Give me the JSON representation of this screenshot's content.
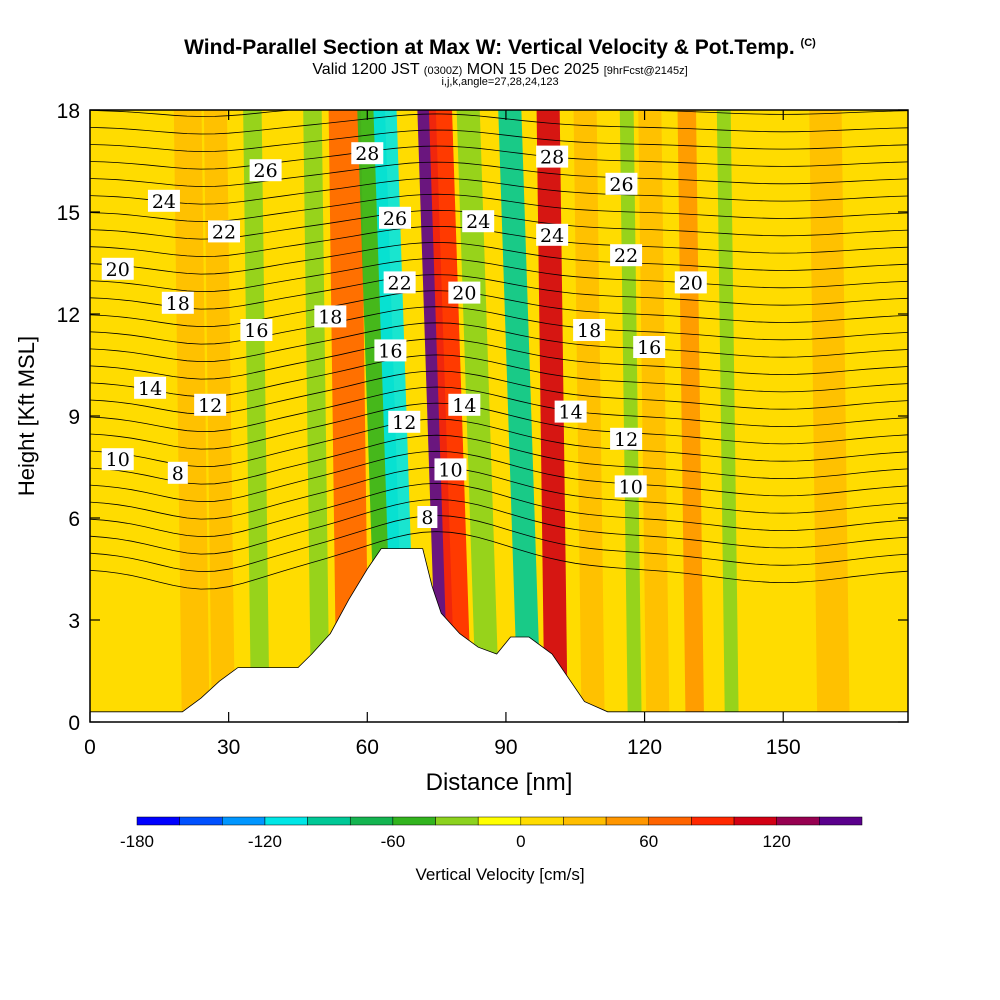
{
  "header": {
    "title": "Wind-Parallel Section at Max W: Vertical Velocity & Pot.Temp.",
    "title_mark": "(C)",
    "subtitle_pre": "Valid 1200 JST",
    "subtitle_small1": "(0300Z)",
    "subtitle_mid": "MON 15 Dec 2025",
    "subtitle_small2": "[9hrFcst@2145z]",
    "indices": "i,j,k,angle=27,28,24,123"
  },
  "chart_data": {
    "type": "heatmap",
    "xlabel": "Distance [nm]",
    "ylabel": "Height [Kft MSL]",
    "xlim": [
      0,
      177
    ],
    "ylim": [
      0,
      18
    ],
    "xticks": [
      0,
      30,
      60,
      90,
      120,
      150
    ],
    "yticks": [
      0,
      3,
      6,
      9,
      12,
      15,
      18
    ],
    "colorbar": {
      "label": "Vertical Velocity [cm/s]",
      "tick_values": [
        -180,
        -120,
        -60,
        0,
        60,
        120
      ],
      "levels": [
        -180,
        -160,
        -140,
        -120,
        -100,
        -80,
        -60,
        -40,
        -20,
        0,
        20,
        40,
        60,
        80,
        100,
        120,
        140,
        160
      ],
      "colors": [
        "#0000ff",
        "#0050ff",
        "#0096ff",
        "#00e6e6",
        "#00c896",
        "#14b450",
        "#32b41e",
        "#8cd21e",
        "#ffff00",
        "#ffdc00",
        "#ffbe00",
        "#ff9600",
        "#ff6400",
        "#ff2800",
        "#d20014",
        "#960050",
        "#5a008c"
      ]
    },
    "velocity_bands": [
      {
        "x_center": 22,
        "width": 6,
        "w": 20
      },
      {
        "x_center": 28,
        "width": 5,
        "w": 30
      },
      {
        "x_center": 36,
        "width": 4,
        "w": -40
      },
      {
        "x_center": 49,
        "width": 4,
        "w": -40
      },
      {
        "x_center": 56,
        "width": 7,
        "w": 60
      },
      {
        "x_center": 63,
        "width": 6,
        "w": -60
      },
      {
        "x_center": 66,
        "width": 5,
        "w": -120
      },
      {
        "x_center": 75,
        "width": 4,
        "w": 140
      },
      {
        "x_center": 78,
        "width": 5,
        "w": 80
      },
      {
        "x_center": 84,
        "width": 5,
        "w": -40
      },
      {
        "x_center": 93,
        "width": 5,
        "w": -100
      },
      {
        "x_center": 100,
        "width": 5,
        "w": 110
      },
      {
        "x_center": 108,
        "width": 5,
        "w": 30
      },
      {
        "x_center": 117,
        "width": 3,
        "w": -40
      },
      {
        "x_center": 122,
        "width": 5,
        "w": 20
      },
      {
        "x_center": 130,
        "width": 4,
        "w": 40
      },
      {
        "x_center": 138,
        "width": 3,
        "w": -40
      },
      {
        "x_center": 160,
        "width": 7,
        "w": 30
      }
    ],
    "terrain": [
      [
        0,
        0.3
      ],
      [
        20,
        0.3
      ],
      [
        24,
        0.7
      ],
      [
        28,
        1.2
      ],
      [
        32,
        1.6
      ],
      [
        45,
        1.6
      ],
      [
        48,
        2
      ],
      [
        52,
        2.6
      ],
      [
        56,
        3.6
      ],
      [
        60,
        4.5
      ],
      [
        63,
        5.1
      ],
      [
        72,
        5.1
      ],
      [
        74,
        4
      ],
      [
        76,
        3.2
      ],
      [
        80,
        2.6
      ],
      [
        84,
        2.2
      ],
      [
        88,
        2
      ],
      [
        91,
        2.5
      ],
      [
        95,
        2.5
      ],
      [
        100,
        2
      ],
      [
        104,
        1.2
      ],
      [
        107,
        0.6
      ],
      [
        112,
        0.3
      ],
      [
        177,
        0.3
      ]
    ],
    "pot_temp_contour_labels": [
      {
        "value": "24",
        "x": 16,
        "y": 15.3
      },
      {
        "value": "26",
        "x": 38,
        "y": 16.2
      },
      {
        "value": "28",
        "x": 60,
        "y": 16.7
      },
      {
        "value": "22",
        "x": 29,
        "y": 14.4
      },
      {
        "value": "26",
        "x": 66,
        "y": 14.8
      },
      {
        "value": "24",
        "x": 84,
        "y": 14.7
      },
      {
        "value": "28",
        "x": 100,
        "y": 16.6
      },
      {
        "value": "26",
        "x": 115,
        "y": 15.8
      },
      {
        "value": "24",
        "x": 100,
        "y": 14.3
      },
      {
        "value": "22",
        "x": 116,
        "y": 13.7
      },
      {
        "value": "20",
        "x": 6,
        "y": 13.3
      },
      {
        "value": "22",
        "x": 67,
        "y": 12.9
      },
      {
        "value": "20",
        "x": 81,
        "y": 12.6
      },
      {
        "value": "20",
        "x": 130,
        "y": 12.9
      },
      {
        "value": "18",
        "x": 19,
        "y": 12.3
      },
      {
        "value": "18",
        "x": 52,
        "y": 11.9
      },
      {
        "value": "16",
        "x": 36,
        "y": 11.5
      },
      {
        "value": "16",
        "x": 65,
        "y": 10.9
      },
      {
        "value": "18",
        "x": 108,
        "y": 11.5
      },
      {
        "value": "16",
        "x": 121,
        "y": 11
      },
      {
        "value": "14",
        "x": 13,
        "y": 9.8
      },
      {
        "value": "12",
        "x": 26,
        "y": 9.3
      },
      {
        "value": "14",
        "x": 81,
        "y": 9.3
      },
      {
        "value": "14",
        "x": 104,
        "y": 9.1
      },
      {
        "value": "12",
        "x": 68,
        "y": 8.8
      },
      {
        "value": "12",
        "x": 116,
        "y": 8.3
      },
      {
        "value": "10",
        "x": 6,
        "y": 7.7
      },
      {
        "value": "8",
        "x": 19,
        "y": 7.3
      },
      {
        "value": "10",
        "x": 78,
        "y": 7.4
      },
      {
        "value": "10",
        "x": 117,
        "y": 6.9
      },
      {
        "value": "8",
        "x": 73,
        "y": 6
      }
    ]
  }
}
